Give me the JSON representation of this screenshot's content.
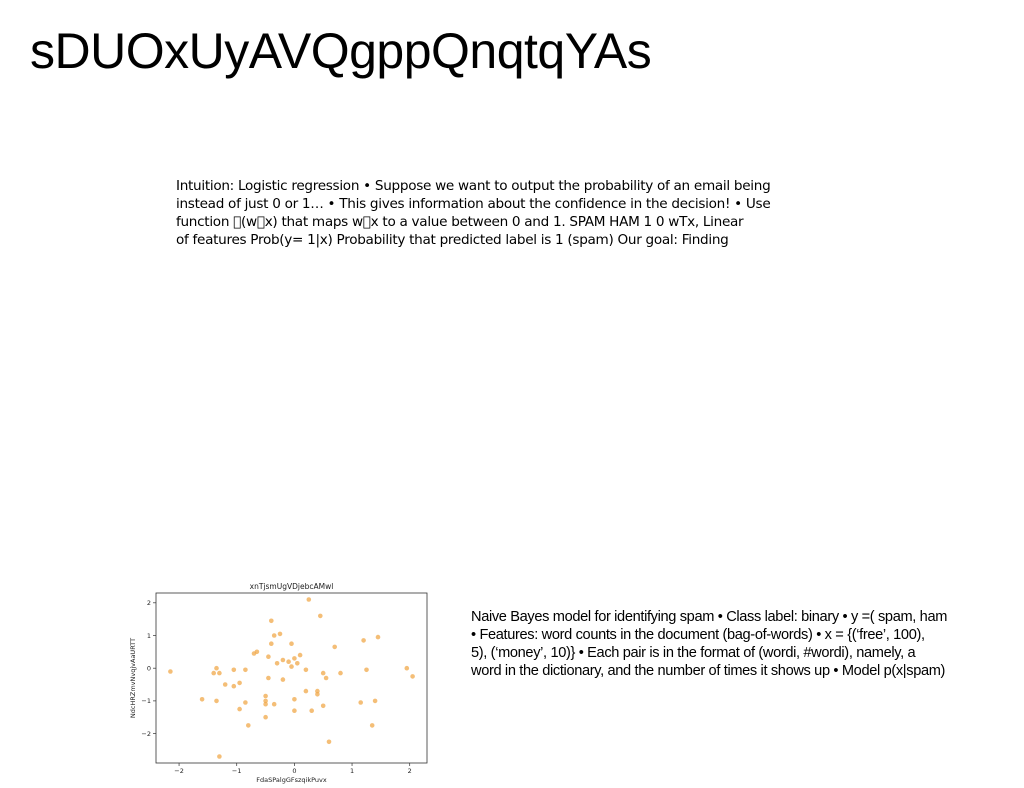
{
  "slide": {
    "title": "sDUOxUyAVQgppQnqtqYAs",
    "top_text_lines": [
      "Intuition: Logistic regression • Suppose we want to output the probability of an email being",
      "instead of just 0 or 1… • This gives information about the confidence in the decision! • Use",
      "function \u0000(w\u0000x) that maps w\u0000x to a value between 0 and 1. SPAM HAM 1 0 wTx, Linear",
      "of features Prob(y= 1|x) Probability that predicted label is 1 (spam) Our goal: Finding"
    ],
    "right_text_lines": [
      "Naive Bayes model for identifying spam • Class label: binary • y =( spam, ham",
      "• Features: word counts in the document (bag-of-words) • x = {(‘free’, 100),",
      "5), (‘money’, 10)} • Each pair is in the format of (wordi, #wordi), namely, a",
      "word in the dictionary, and the number of times it shows up • Model p(x|spam)"
    ]
  },
  "chart_data": {
    "type": "scatter",
    "title": "xnTjsmUgVDjebcAMwl",
    "xlabel": "FdaSPalgGFszqikPuvx",
    "ylabel": "NdcHRZmvNvqjvAaURTT",
    "xlim": [
      -2.4,
      2.3
    ],
    "ylim": [
      -2.9,
      2.3
    ],
    "xticks": [
      -2,
      -1,
      0,
      1,
      2
    ],
    "yticks": [
      -2,
      -1,
      0,
      1,
      2
    ],
    "xtick_labels": [
      "−2",
      "−1",
      "0",
      "1",
      "2"
    ],
    "ytick_labels": [
      "−2",
      "−1",
      "0",
      "1",
      "2"
    ],
    "grid": false,
    "point_color": "#f0a84a",
    "points": [
      [
        0.25,
        2.1
      ],
      [
        0.45,
        1.6
      ],
      [
        -0.4,
        1.45
      ],
      [
        1.45,
        0.95
      ],
      [
        1.2,
        0.85
      ],
      [
        -0.35,
        1.0
      ],
      [
        -0.25,
        1.05
      ],
      [
        -0.05,
        0.75
      ],
      [
        0.7,
        0.65
      ],
      [
        -0.4,
        0.75
      ],
      [
        0.1,
        0.4
      ],
      [
        -0.65,
        0.5
      ],
      [
        -0.7,
        0.45
      ],
      [
        -0.45,
        0.35
      ],
      [
        -0.2,
        0.25
      ],
      [
        -0.3,
        0.15
      ],
      [
        -0.1,
        0.2
      ],
      [
        0.0,
        0.3
      ],
      [
        -0.05,
        0.05
      ],
      [
        0.2,
        -0.05
      ],
      [
        1.95,
        0.0
      ],
      [
        1.25,
        -0.05
      ],
      [
        0.8,
        -0.15
      ],
      [
        0.5,
        -0.15
      ],
      [
        0.05,
        0.15
      ],
      [
        -0.85,
        -0.05
      ],
      [
        -1.35,
        0.0
      ],
      [
        -1.05,
        -0.05
      ],
      [
        -1.4,
        -0.15
      ],
      [
        -1.3,
        -0.15
      ],
      [
        -2.15,
        -0.1
      ],
      [
        2.05,
        -0.25
      ],
      [
        0.55,
        -0.3
      ],
      [
        -0.2,
        -0.35
      ],
      [
        -0.45,
        -0.3
      ],
      [
        -0.95,
        -0.45
      ],
      [
        -1.2,
        -0.5
      ],
      [
        -1.05,
        -0.55
      ],
      [
        0.2,
        -0.7
      ],
      [
        0.4,
        -0.7
      ],
      [
        -0.5,
        -0.85
      ],
      [
        0.4,
        -0.8
      ],
      [
        -1.6,
        -0.95
      ],
      [
        -1.35,
        -1.0
      ],
      [
        -0.5,
        -1.0
      ],
      [
        0.0,
        -0.95
      ],
      [
        1.4,
        -1.0
      ],
      [
        1.15,
        -1.05
      ],
      [
        -0.35,
        -1.1
      ],
      [
        -0.5,
        -1.1
      ],
      [
        -0.85,
        -1.05
      ],
      [
        0.5,
        -1.15
      ],
      [
        -0.95,
        -1.25
      ],
      [
        0.0,
        -1.3
      ],
      [
        0.3,
        -1.3
      ],
      [
        -0.5,
        -1.5
      ],
      [
        -0.8,
        -1.75
      ],
      [
        1.35,
        -1.75
      ],
      [
        0.6,
        -2.25
      ],
      [
        -1.3,
        -2.7
      ]
    ]
  }
}
